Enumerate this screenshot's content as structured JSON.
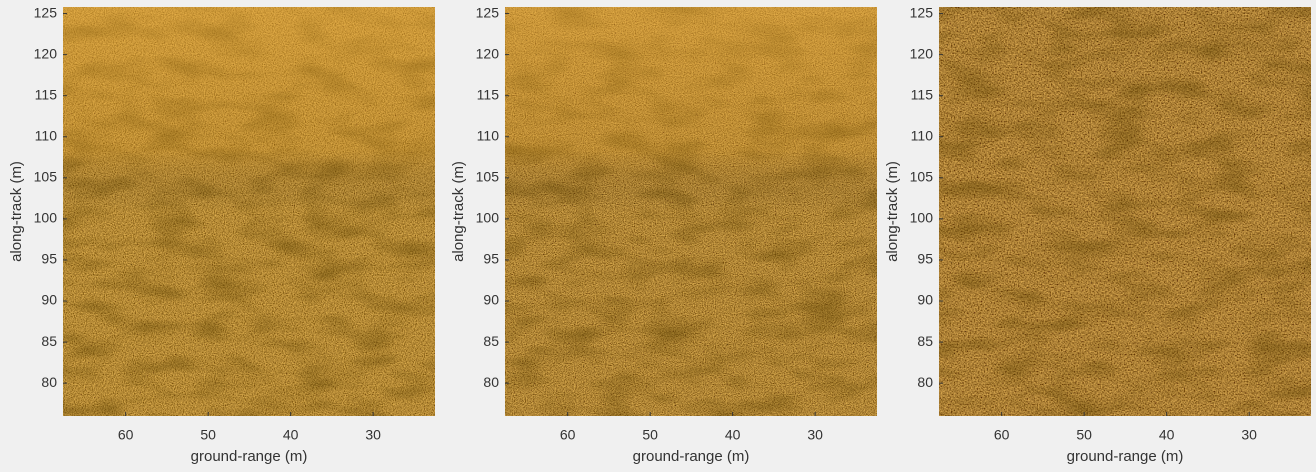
{
  "chart_data": [
    {
      "type": "image",
      "xlabel": "ground-range (m)",
      "ylabel": "along-track (m)",
      "xlim": [
        67.6,
        22.5
      ],
      "xticks": [
        60,
        50,
        40,
        30
      ],
      "ylim": [
        76,
        125.8
      ],
      "yticks": [
        80,
        85,
        90,
        95,
        100,
        105,
        110,
        115,
        120,
        125
      ]
    },
    {
      "type": "image",
      "xlabel": "ground-range (m)",
      "ylabel": "along-track (m)",
      "xlim": [
        67.6,
        22.5
      ],
      "xticks": [
        60,
        50,
        40,
        30
      ],
      "ylim": [
        76,
        125.8
      ],
      "yticks": [
        80,
        85,
        90,
        95,
        100,
        105,
        110,
        115,
        120,
        125
      ]
    },
    {
      "type": "image",
      "xlabel": "ground-range (m)",
      "ylabel": "along-track (m)",
      "xlim": [
        67.6,
        22.5
      ],
      "xticks": [
        60,
        50,
        40,
        30
      ],
      "ylim": [
        76,
        125.8
      ],
      "yticks": [
        80,
        85,
        90,
        95,
        100,
        105,
        110,
        115,
        120,
        125
      ]
    }
  ]
}
